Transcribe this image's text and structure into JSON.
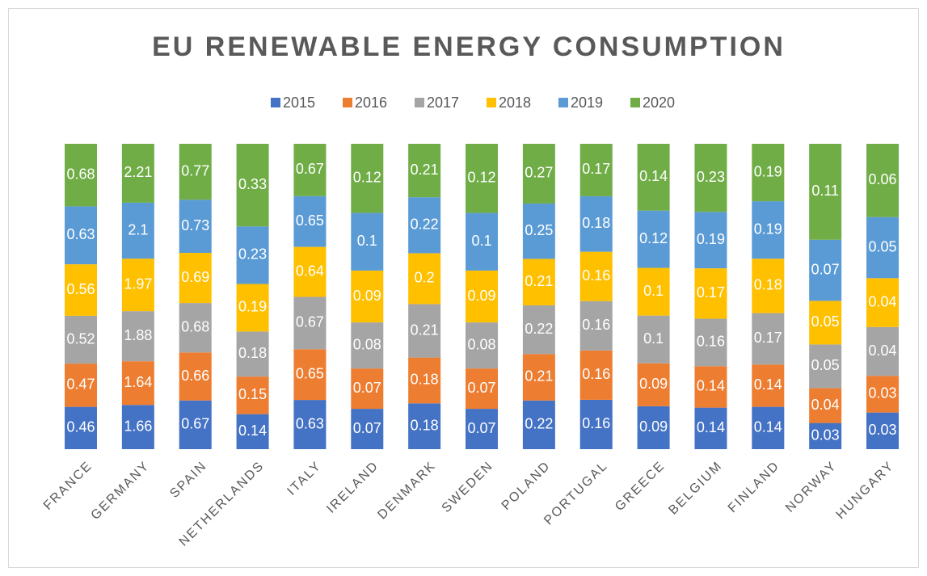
{
  "chart_data": {
    "type": "bar",
    "stacking": "percent",
    "title": "EU RENEWABLE ENERGY CONSUMPTION",
    "categories": [
      "FRANCE",
      "GERMANY",
      "SPAIN",
      "NETHERLANDS",
      "ITALY",
      "IRELAND",
      "DENMARK",
      "SWEDEN",
      "POLAND",
      "PORTUGAL",
      "GREECE",
      "BELGIUM",
      "FINLAND",
      "NORWAY",
      "HUNGARY"
    ],
    "series": [
      {
        "name": "2015",
        "color": "#4472c4",
        "values": [
          0.46,
          1.66,
          0.67,
          0.14,
          0.63,
          0.07,
          0.18,
          0.07,
          0.22,
          0.16,
          0.09,
          0.14,
          0.14,
          0.03,
          0.03
        ]
      },
      {
        "name": "2016",
        "color": "#ed7d31",
        "values": [
          0.47,
          1.64,
          0.66,
          0.15,
          0.65,
          0.07,
          0.18,
          0.07,
          0.21,
          0.16,
          0.09,
          0.14,
          0.14,
          0.04,
          0.03
        ]
      },
      {
        "name": "2017",
        "color": "#a5a5a5",
        "values": [
          0.52,
          1.88,
          0.68,
          0.18,
          0.67,
          0.08,
          0.21,
          0.08,
          0.22,
          0.16,
          0.1,
          0.16,
          0.17,
          0.05,
          0.04
        ]
      },
      {
        "name": "2018",
        "color": "#ffc000",
        "values": [
          0.56,
          1.97,
          0.69,
          0.19,
          0.64,
          0.09,
          0.2,
          0.09,
          0.21,
          0.16,
          0.1,
          0.17,
          0.18,
          0.05,
          0.04
        ]
      },
      {
        "name": "2019",
        "color": "#5b9bd5",
        "values": [
          0.63,
          2.1,
          0.73,
          0.23,
          0.65,
          0.1,
          0.22,
          0.1,
          0.25,
          0.18,
          0.12,
          0.19,
          0.19,
          0.07,
          0.05
        ]
      },
      {
        "name": "2020",
        "color": "#70ad47",
        "values": [
          0.68,
          2.21,
          0.77,
          0.33,
          0.67,
          0.12,
          0.21,
          0.12,
          0.27,
          0.17,
          0.14,
          0.23,
          0.19,
          0.11,
          0.06
        ]
      }
    ]
  }
}
